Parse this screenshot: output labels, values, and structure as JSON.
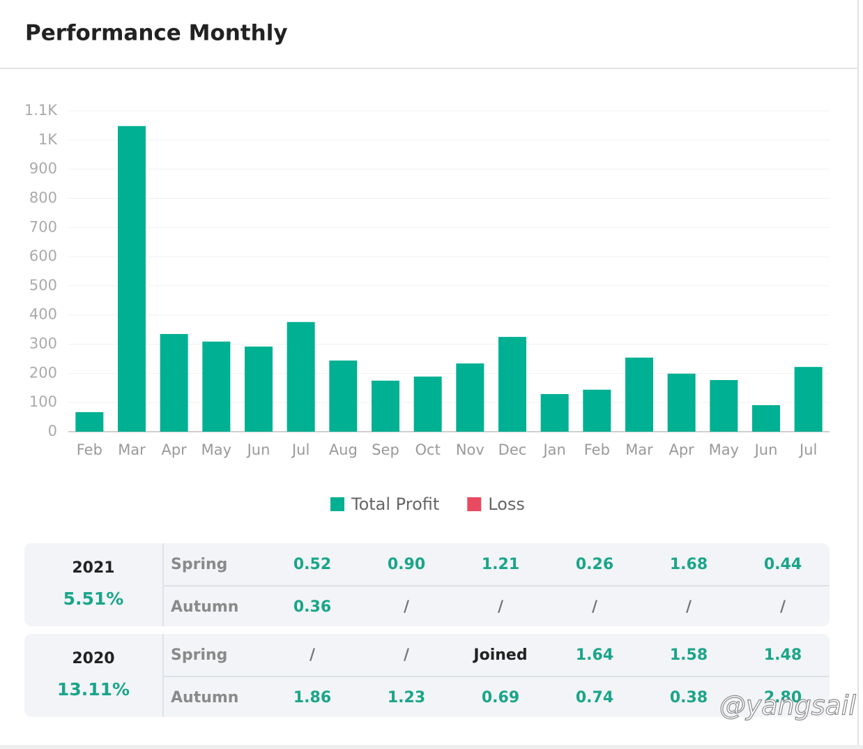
{
  "header": {
    "title": "Performance Monthly"
  },
  "chart_data": {
    "type": "bar",
    "categories": [
      "Feb",
      "Mar",
      "Apr",
      "May",
      "Jun",
      "Jul",
      "Aug",
      "Sep",
      "Oct",
      "Nov",
      "Dec",
      "Jan",
      "Feb",
      "Mar",
      "Apr",
      "May",
      "Jun",
      "Jul"
    ],
    "series": [
      {
        "name": "Total Profit",
        "color": "#00b092",
        "values": [
          67,
          1048,
          335,
          309,
          292,
          376,
          244,
          175,
          189,
          234,
          325,
          129,
          144,
          254,
          199,
          177,
          91,
          222
        ]
      },
      {
        "name": "Loss",
        "color": "#e84a5f",
        "values": [
          null,
          null,
          null,
          null,
          null,
          null,
          null,
          null,
          null,
          null,
          null,
          null,
          null,
          null,
          null,
          null,
          null,
          null
        ]
      }
    ],
    "ylim": [
      0,
      1100
    ],
    "yticks": [
      0,
      100,
      200,
      300,
      400,
      500,
      600,
      700,
      800,
      900,
      {
        "value": 1000,
        "label": "1K"
      },
      {
        "value": 1100,
        "label": "1.1K"
      }
    ],
    "grid": true
  },
  "tables": [
    {
      "year": "2021",
      "return": "5.51%",
      "rows": [
        {
          "label": "Spring",
          "cells": [
            "0.52",
            "0.90",
            "1.21",
            "0.26",
            "1.68",
            "0.44"
          ]
        },
        {
          "label": "Autumn",
          "cells": [
            "0.36",
            "/",
            "/",
            "/",
            "/",
            "/"
          ]
        }
      ]
    },
    {
      "year": "2020",
      "return": "13.11%",
      "rows": [
        {
          "label": "Spring",
          "cells": [
            "/",
            "/",
            "Joined",
            "1.64",
            "1.58",
            "1.48"
          ]
        },
        {
          "label": "Autumn",
          "cells": [
            "1.86",
            "1.23",
            "0.69",
            "0.74",
            "0.38",
            "2.80"
          ]
        }
      ]
    }
  ],
  "watermark": "@yangsail"
}
